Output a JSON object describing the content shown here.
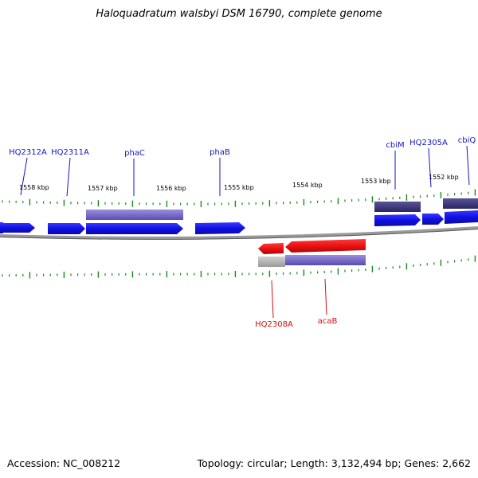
{
  "title": "Haloquadratum walsbyi DSM 16790, complete genome",
  "footer": {
    "accession": "Accession: NC_008212",
    "summary": "Topology: circular; Length: 3,132,494 bp; Genes: 2,662"
  },
  "colors": {
    "forward_gene": "#1010e6",
    "reverse_gene": "#ee1111",
    "forward_label": "#1414c8",
    "reverse_label": "#d01010",
    "cds_forward": "#7a6ccc",
    "cds_forward_dark": "#3c3878",
    "cds_reverse": "#7a6ccc",
    "tick": "#1a8a1a",
    "backbone": "#8a8a8a"
  },
  "ruler_upper": [
    "1558 kbp",
    "1557 kbp",
    "1556 kbp",
    "1555 kbp",
    "1554 kbp",
    "1553 kbp",
    "1552 kbp"
  ],
  "forward_labels": [
    "HQ2312A",
    "HQ2311A",
    "phaC",
    "phaB",
    "cbiM",
    "HQ2305A",
    "cbiQ"
  ],
  "reverse_labels": [
    "HQ2308A",
    "acaB"
  ]
}
